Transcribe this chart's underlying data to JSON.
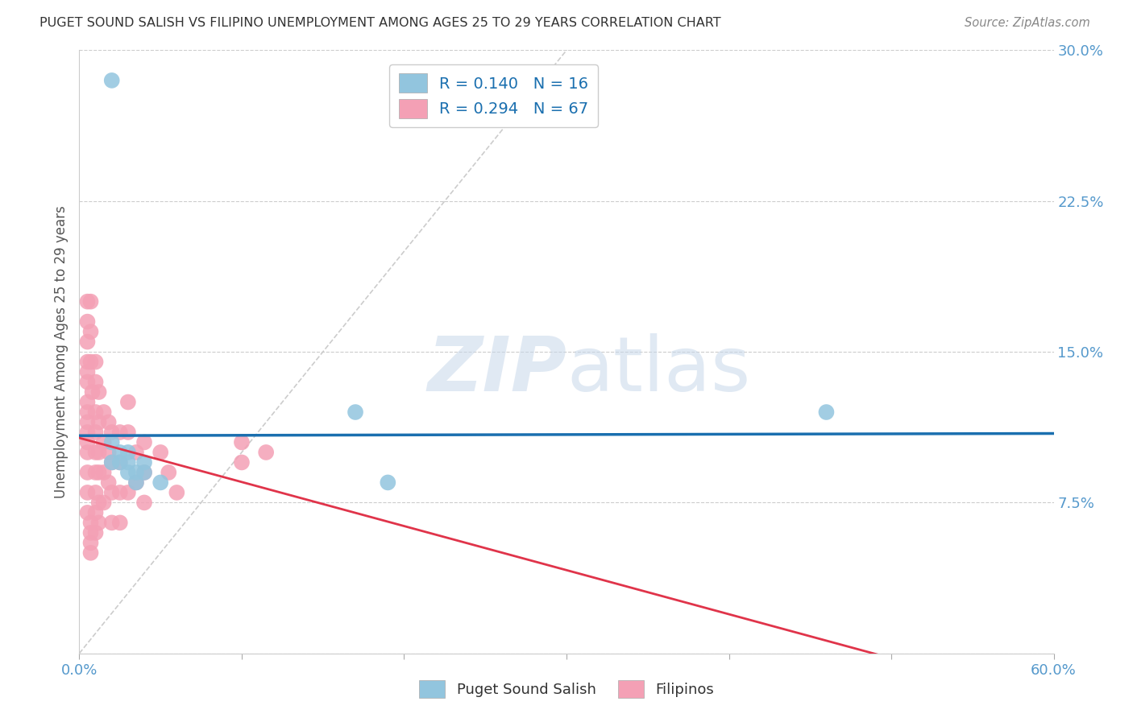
{
  "title": "PUGET SOUND SALISH VS FILIPINO UNEMPLOYMENT AMONG AGES 25 TO 29 YEARS CORRELATION CHART",
  "source": "Source: ZipAtlas.com",
  "ylabel": "Unemployment Among Ages 25 to 29 years",
  "xlim": [
    0.0,
    0.6
  ],
  "ylim": [
    0.0,
    0.3
  ],
  "xticks": [
    0.0,
    0.1,
    0.2,
    0.3,
    0.4,
    0.5,
    0.6
  ],
  "yticks": [
    0.0,
    0.075,
    0.15,
    0.225,
    0.3
  ],
  "ytick_labels": [
    "",
    "7.5%",
    "15.0%",
    "22.5%",
    "30.0%"
  ],
  "xtick_labels": [
    "0.0%",
    "",
    "",
    "",
    "",
    "",
    "60.0%"
  ],
  "salish_color": "#92c5de",
  "filipino_color": "#f4a0b5",
  "salish_line_color": "#1a6faf",
  "filipino_line_color": "#e0344a",
  "diagonal_color": "#cccccc",
  "R_salish": 0.14,
  "N_salish": 16,
  "R_filipino": 0.294,
  "N_filipino": 67,
  "salish_x": [
    0.02,
    0.02,
    0.025,
    0.025,
    0.03,
    0.03,
    0.03,
    0.035,
    0.035,
    0.04,
    0.04,
    0.05,
    0.17,
    0.19,
    0.46,
    0.02
  ],
  "salish_y": [
    0.285,
    0.105,
    0.1,
    0.095,
    0.1,
    0.095,
    0.09,
    0.09,
    0.085,
    0.095,
    0.09,
    0.085,
    0.12,
    0.085,
    0.12,
    0.095
  ],
  "filipino_x": [
    0.005,
    0.005,
    0.005,
    0.005,
    0.005,
    0.005,
    0.005,
    0.005,
    0.005,
    0.005,
    0.005,
    0.005,
    0.005,
    0.005,
    0.005,
    0.007,
    0.007,
    0.007,
    0.007,
    0.007,
    0.007,
    0.007,
    0.008,
    0.01,
    0.01,
    0.01,
    0.01,
    0.01,
    0.01,
    0.01,
    0.01,
    0.01,
    0.012,
    0.012,
    0.012,
    0.012,
    0.012,
    0.012,
    0.015,
    0.015,
    0.015,
    0.015,
    0.018,
    0.018,
    0.018,
    0.02,
    0.02,
    0.02,
    0.02,
    0.025,
    0.025,
    0.025,
    0.025,
    0.03,
    0.03,
    0.03,
    0.035,
    0.035,
    0.04,
    0.04,
    0.04,
    0.05,
    0.055,
    0.06,
    0.1,
    0.1,
    0.115
  ],
  "filipino_y": [
    0.175,
    0.165,
    0.155,
    0.145,
    0.14,
    0.135,
    0.125,
    0.12,
    0.115,
    0.11,
    0.105,
    0.1,
    0.09,
    0.08,
    0.07,
    0.065,
    0.06,
    0.055,
    0.05,
    0.175,
    0.16,
    0.145,
    0.13,
    0.145,
    0.135,
    0.12,
    0.11,
    0.1,
    0.09,
    0.08,
    0.07,
    0.06,
    0.13,
    0.115,
    0.1,
    0.09,
    0.075,
    0.065,
    0.12,
    0.105,
    0.09,
    0.075,
    0.115,
    0.1,
    0.085,
    0.11,
    0.095,
    0.08,
    0.065,
    0.11,
    0.095,
    0.08,
    0.065,
    0.125,
    0.11,
    0.08,
    0.1,
    0.085,
    0.105,
    0.09,
    0.075,
    0.1,
    0.09,
    0.08,
    0.105,
    0.095,
    0.1
  ],
  "grid_color": "#cccccc",
  "bg_color": "#ffffff",
  "title_color": "#333333",
  "axis_label_color": "#555555",
  "tick_color": "#5599cc",
  "legend_text_color": "#1a6faf"
}
